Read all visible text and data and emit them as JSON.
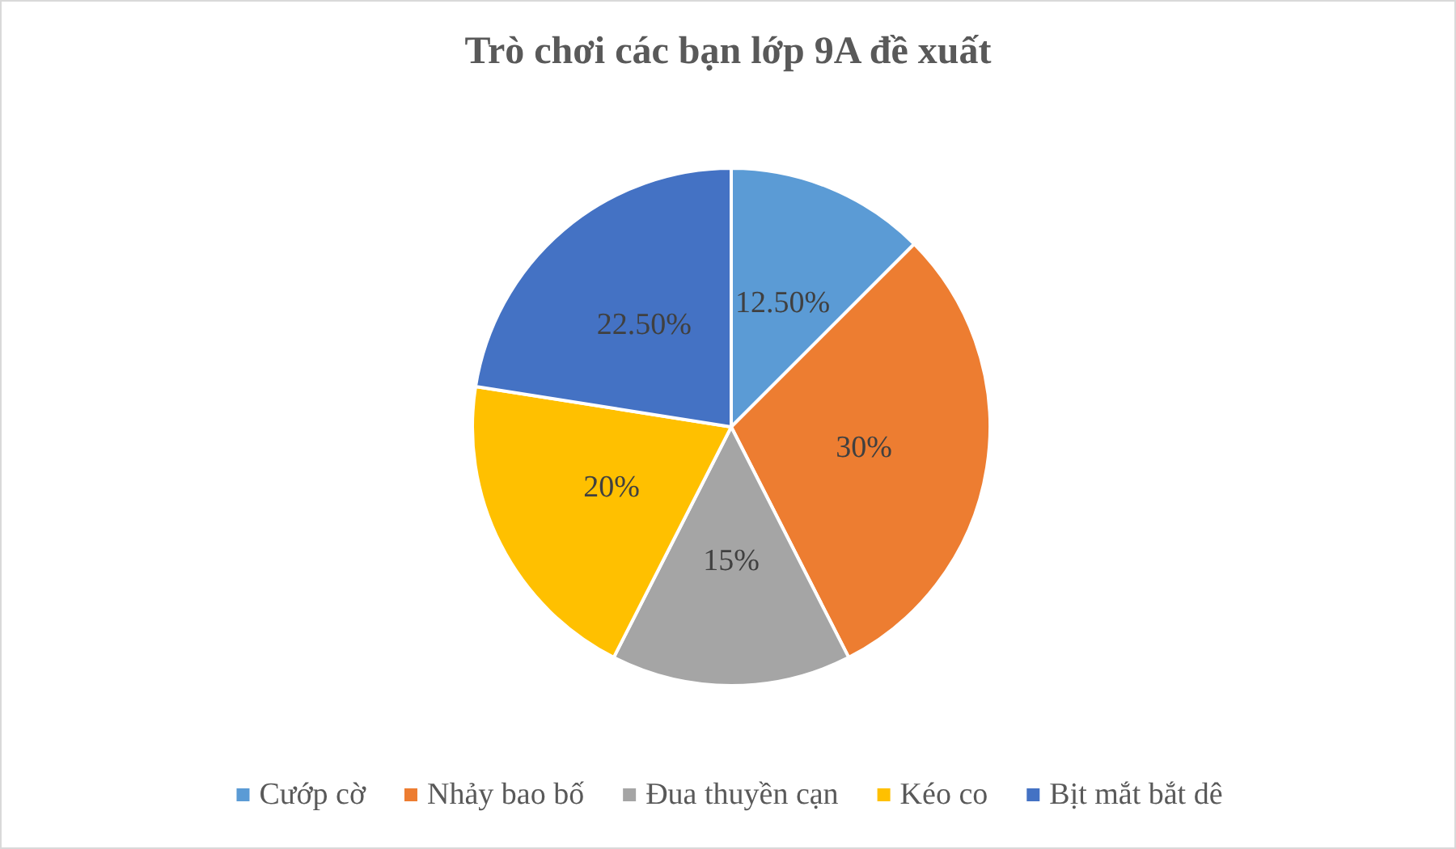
{
  "chart_data": {
    "type": "pie",
    "title": "Trò chơi các bạn lớp 9A đề xuất",
    "categories": [
      "Cướp cờ",
      "Nhảy bao bố",
      "Đua thuyền cạn",
      "Kéo co",
      "Bịt mắt bắt dê"
    ],
    "values": [
      12.5,
      30,
      15,
      20,
      22.5
    ],
    "colors": [
      "#5b9bd5",
      "#ed7d31",
      "#a5a5a5",
      "#ffc000",
      "#4472c4"
    ],
    "value_labels": [
      "12.50%",
      "30%",
      "15%",
      "20%",
      "22.50%"
    ],
    "legend": "bottom"
  }
}
